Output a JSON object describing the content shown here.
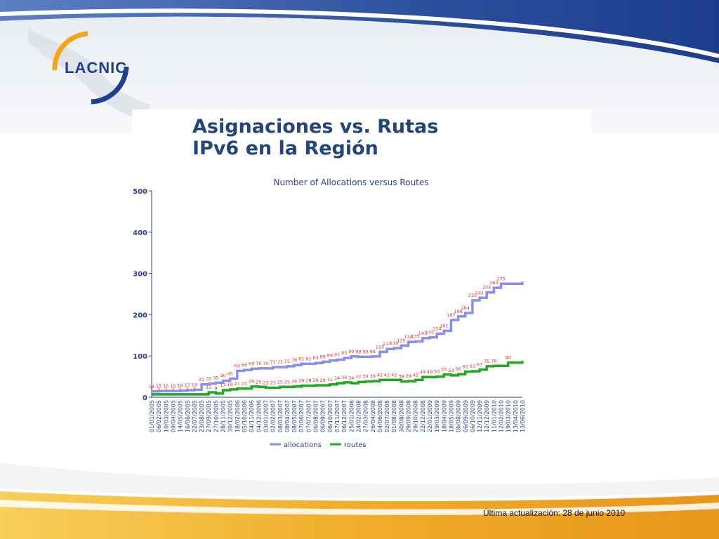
{
  "slide": {
    "logo_text": "LACNIC",
    "title_line1": "Asignaciones vs. Rutas",
    "title_line2": "IPv6 en la Región",
    "footer": "Última actualización:  28 de junio 2010"
  },
  "colors": {
    "allocations": "#8a8ef0",
    "routes": "#1faa1f",
    "labels": "#e03030",
    "axis": "#2b3f8f",
    "title": "#23457a"
  },
  "chart_data": {
    "type": "line",
    "title": "Number of Allocations versus Routes",
    "xlabel": "",
    "ylabel": "",
    "ylim": [
      0,
      500
    ],
    "yticks": [
      0,
      100,
      200,
      300,
      400,
      500
    ],
    "grid": false,
    "legend": "bottom-center",
    "x": [
      "01/01/2005",
      "06/02/2005",
      "10/03/2005",
      "09/04/2005",
      "14/05/2005",
      "16/06/2005",
      "22/07/2005",
      "23/08/2005",
      "27/09/2005",
      "27/10/2005",
      "28/11/2005",
      "30/12/2005",
      "18/02/2006",
      "05/10/2006",
      "04/11/2006",
      "04/12/2006",
      "03/01/2007",
      "02/02/2007",
      "08/03/2007",
      "08/04/2007",
      "08/05/2007",
      "07/06/2007",
      "07/07/2007",
      "06/08/2007",
      "06/09/2007",
      "06/10/2007",
      "07/11/2007",
      "06/12/2007",
      "25/01/2008",
      "24/02/2008",
      "27/03/2008",
      "26/04/2008",
      "04/06/2008",
      "02/07/2008",
      "01/08/2008",
      "30/08/2008",
      "29/09/2008",
      "29/10/2008",
      "22/12/2008",
      "22/01/2009",
      "19/03/2009",
      "18/04/2009",
      "18/05/2009",
      "06/08/2009",
      "06/09/2009",
      "06/10/2009",
      "12/11/2009",
      "12/12/2009",
      "11/01/2010",
      "12/02/2010",
      "19/03/2010",
      "13/04/2010",
      "13/06/2010"
    ],
    "series": [
      {
        "name": "allocations",
        "values": [
          14,
          15,
          15,
          15,
          16,
          17,
          18,
          31,
          33,
          35,
          40,
          45,
          64,
          66,
          69,
          70,
          70,
          73,
          73,
          75,
          78,
          81,
          81,
          83,
          86,
          89,
          91,
          95,
          99,
          98,
          98,
          99,
          110,
          117,
          119,
          125,
          134,
          135,
          143,
          145,
          154,
          161,
          187,
          196,
          204,
          235,
          241,
          254,
          265,
          275,
          275,
          275,
          280
        ]
      },
      {
        "name": "routes",
        "values": [
          7,
          7,
          7,
          7,
          7,
          7,
          7,
          7,
          12,
          9,
          17,
          19,
          21,
          21,
          26,
          25,
          23,
          23,
          25,
          25,
          26,
          28,
          28,
          29,
          29,
          31,
          34,
          36,
          34,
          37,
          38,
          39,
          42,
          42,
          42,
          38,
          39,
          42,
          49,
          49,
          50,
          55,
          53,
          56,
          62,
          63,
          67,
          75,
          76,
          76,
          84,
          84,
          88
        ]
      }
    ],
    "point_labels": {
      "allocations": [
        {
          "i": 0,
          "v": 14
        },
        {
          "i": 1,
          "v": 15
        },
        {
          "i": 2,
          "v": 15
        },
        {
          "i": 3,
          "v": 15
        },
        {
          "i": 4,
          "v": 16
        },
        {
          "i": 5,
          "v": 17
        },
        {
          "i": 6,
          "v": 18
        },
        {
          "i": 7,
          "v": 31
        },
        {
          "i": 8,
          "v": 33
        },
        {
          "i": 9,
          "v": 35
        },
        {
          "i": 10,
          "v": 40
        },
        {
          "i": 11,
          "v": 45
        },
        {
          "i": 12,
          "v": 64
        },
        {
          "i": 13,
          "v": 66
        },
        {
          "i": 14,
          "v": 69
        },
        {
          "i": 15,
          "v": 70
        },
        {
          "i": 16,
          "v": 70
        },
        {
          "i": 17,
          "v": 73
        },
        {
          "i": 18,
          "v": 73
        },
        {
          "i": 19,
          "v": 75
        },
        {
          "i": 20,
          "v": 78
        },
        {
          "i": 21,
          "v": 81
        },
        {
          "i": 22,
          "v": 81
        },
        {
          "i": 23,
          "v": 83
        },
        {
          "i": 24,
          "v": 86
        },
        {
          "i": 25,
          "v": 89
        },
        {
          "i": 26,
          "v": 91
        },
        {
          "i": 27,
          "v": 95
        },
        {
          "i": 28,
          "v": 99
        },
        {
          "i": 29,
          "v": 98
        },
        {
          "i": 30,
          "v": 98
        },
        {
          "i": 31,
          "v": 99
        },
        {
          "i": 32,
          "v": 110
        },
        {
          "i": 33,
          "v": 117
        },
        {
          "i": 34,
          "v": 119
        },
        {
          "i": 35,
          "v": 125
        },
        {
          "i": 36,
          "v": 134
        },
        {
          "i": 37,
          "v": 135
        },
        {
          "i": 38,
          "v": 143
        },
        {
          "i": 39,
          "v": 145
        },
        {
          "i": 40,
          "v": 154
        },
        {
          "i": 41,
          "v": 161
        },
        {
          "i": 42,
          "v": 187
        },
        {
          "i": 43,
          "v": 196
        },
        {
          "i": 44,
          "v": 204
        },
        {
          "i": 45,
          "v": 235
        },
        {
          "i": 46,
          "v": 241
        },
        {
          "i": 47,
          "v": 254
        },
        {
          "i": 48,
          "v": 265
        },
        {
          "i": 49,
          "v": 275
        }
      ],
      "routes": [
        {
          "i": 0,
          "v": 7
        },
        {
          "i": 1,
          "v": 7
        },
        {
          "i": 2,
          "v": 7
        },
        {
          "i": 3,
          "v": 7
        },
        {
          "i": 4,
          "v": 7
        },
        {
          "i": 5,
          "v": 7
        },
        {
          "i": 6,
          "v": 7
        },
        {
          "i": 8,
          "v": 12
        },
        {
          "i": 9,
          "v": 9
        },
        {
          "i": 10,
          "v": 17
        },
        {
          "i": 11,
          "v": 19
        },
        {
          "i": 12,
          "v": 21
        },
        {
          "i": 13,
          "v": 21
        },
        {
          "i": 14,
          "v": 26
        },
        {
          "i": 15,
          "v": 25
        },
        {
          "i": 16,
          "v": 23
        },
        {
          "i": 17,
          "v": 23
        },
        {
          "i": 18,
          "v": 25
        },
        {
          "i": 19,
          "v": 25
        },
        {
          "i": 20,
          "v": 26
        },
        {
          "i": 21,
          "v": 28
        },
        {
          "i": 22,
          "v": 28
        },
        {
          "i": 23,
          "v": 29
        },
        {
          "i": 24,
          "v": 29
        },
        {
          "i": 25,
          "v": 31
        },
        {
          "i": 26,
          "v": 34
        },
        {
          "i": 27,
          "v": 36
        },
        {
          "i": 28,
          "v": 34
        },
        {
          "i": 29,
          "v": 37
        },
        {
          "i": 30,
          "v": 38
        },
        {
          "i": 31,
          "v": 39
        },
        {
          "i": 32,
          "v": 42
        },
        {
          "i": 33,
          "v": 42
        },
        {
          "i": 34,
          "v": 42
        },
        {
          "i": 35,
          "v": 38
        },
        {
          "i": 36,
          "v": 39
        },
        {
          "i": 37,
          "v": 42
        },
        {
          "i": 38,
          "v": 49
        },
        {
          "i": 39,
          "v": 49
        },
        {
          "i": 40,
          "v": 50
        },
        {
          "i": 41,
          "v": 55
        },
        {
          "i": 42,
          "v": 53
        },
        {
          "i": 43,
          "v": 56
        },
        {
          "i": 44,
          "v": 62
        },
        {
          "i": 45,
          "v": 63
        },
        {
          "i": 46,
          "v": 67
        },
        {
          "i": 47,
          "v": 75
        },
        {
          "i": 48,
          "v": 76
        },
        {
          "i": 50,
          "v": 84
        }
      ]
    }
  }
}
